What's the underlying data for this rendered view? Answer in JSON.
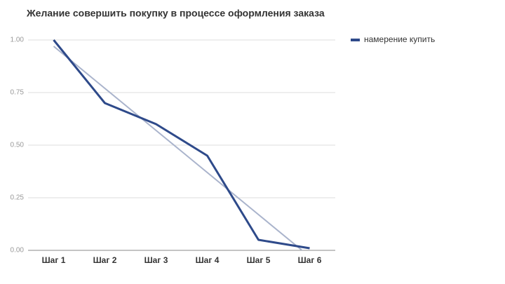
{
  "chart_data": {
    "type": "line",
    "title": "Желание совершить покупку в процессе оформления заказа",
    "categories": [
      "Шаг 1",
      "Шаг 2",
      "Шаг 3",
      "Шаг 4",
      "Шаг 5",
      "Шаг 6"
    ],
    "series": [
      {
        "name": "намерение купить",
        "color": "#2e4a8a",
        "values": [
          1.0,
          0.7,
          0.6,
          0.45,
          0.05,
          0.01
        ]
      }
    ],
    "trendline": {
      "color": "#aab4cc",
      "values": [
        0.97,
        0.77,
        0.57,
        0.37,
        0.17,
        -0.03
      ]
    },
    "ylim": [
      0,
      1
    ],
    "yticks": [
      {
        "value": 0,
        "label": "0.00"
      },
      {
        "value": 0.25,
        "label": "0.25"
      },
      {
        "value": 0.5,
        "label": "0.50"
      },
      {
        "value": 0.75,
        "label": "0.75"
      },
      {
        "value": 1,
        "label": "1.00"
      }
    ],
    "grid": true,
    "legend": "right"
  }
}
